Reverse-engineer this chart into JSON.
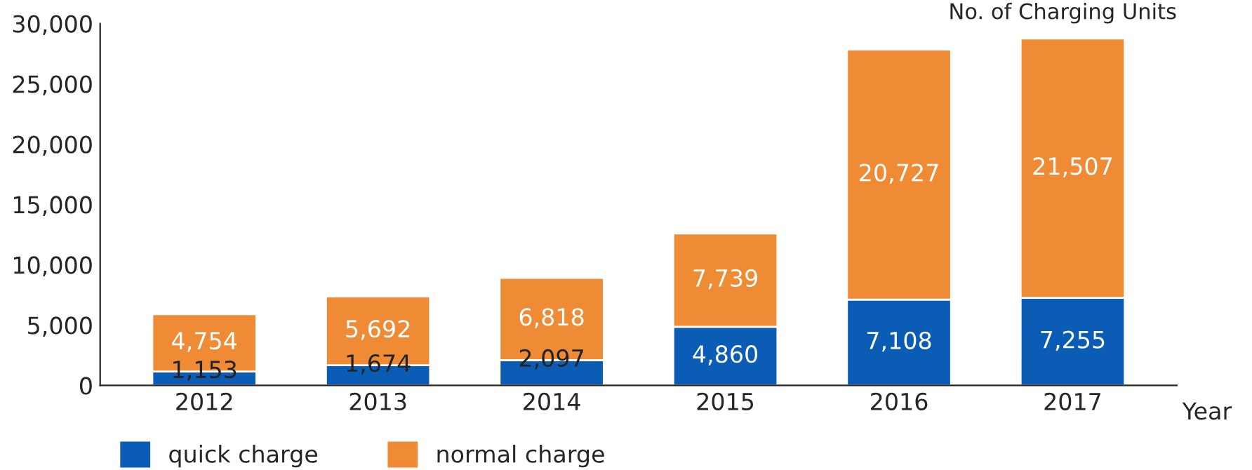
{
  "chart_data": {
    "type": "bar",
    "stacked": true,
    "ylabel": "No. of Charging Units",
    "xlabel": "Year",
    "categories": [
      "2012",
      "2013",
      "2014",
      "2015",
      "2016",
      "2017"
    ],
    "series": [
      {
        "name": "quick charge",
        "color": "#0b5cb5",
        "values": [
          1153,
          1674,
          2097,
          4860,
          7108,
          7255
        ],
        "value_labels": [
          "1,153",
          "1,674",
          "2,097",
          "4,860",
          "7,108",
          "7,255"
        ]
      },
      {
        "name": "normal charge",
        "color": "#ef8a35",
        "values": [
          4754,
          5692,
          6818,
          7739,
          20727,
          21507
        ],
        "value_labels": [
          "4,754",
          "5,692",
          "6,818",
          "7,739",
          "20,727",
          "21,507"
        ]
      }
    ],
    "ylim": [
      0,
      30000
    ],
    "yticks": [
      0,
      {
        "value": 5000,
        "label": "5,000"
      },
      {
        "value": 10000,
        "label": "10,000"
      },
      {
        "value": 15000,
        "label": "15,000"
      },
      {
        "value": 20000,
        "label": "20,000"
      },
      {
        "value": 25000,
        "label": "25,000"
      },
      {
        "value": 30000,
        "label": "30,000"
      }
    ],
    "grid": false,
    "legend": "bottom left"
  }
}
